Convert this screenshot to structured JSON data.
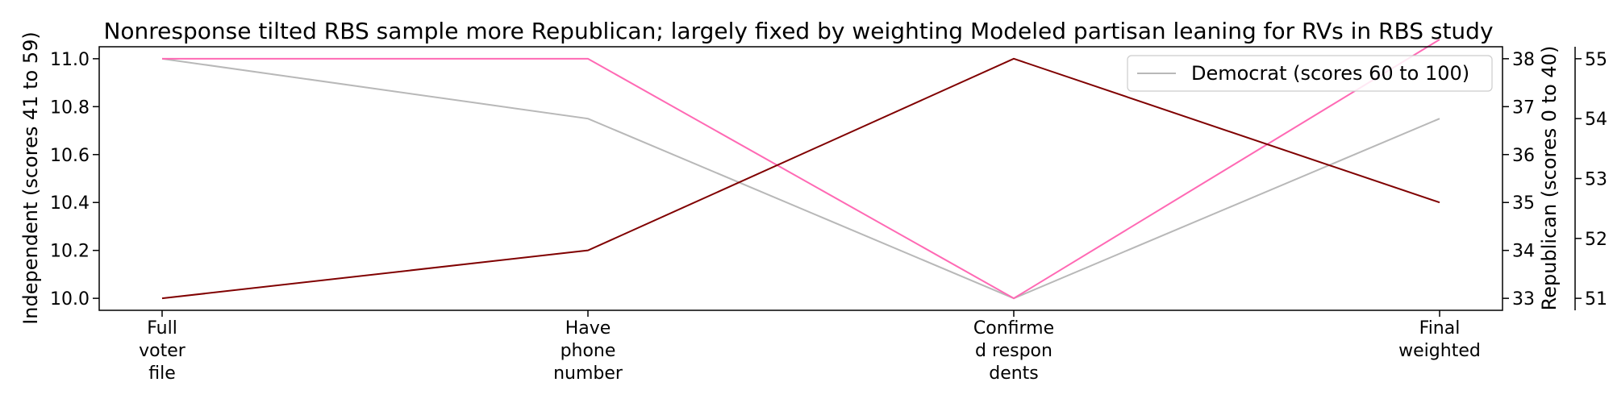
{
  "chart_data": {
    "type": "line",
    "title": "Nonresponse tilted RBS sample more Republican; largely fixed by weighting Modeled partisan leaning for RVs in RBS study",
    "categories": [
      [
        "Full",
        "voter",
        "file"
      ],
      [
        "Have",
        "phone",
        "number"
      ],
      [
        "Confirme",
        "d respon",
        "dents"
      ],
      [
        "Final",
        "weighted"
      ]
    ],
    "axes": {
      "left": {
        "label": "Independent (scores 41 to 59)",
        "range": [
          9.95,
          11.05
        ],
        "ticks": [
          "10.0",
          "10.2",
          "10.4",
          "10.6",
          "10.8",
          "11.0"
        ]
      },
      "right1": {
        "label": "Republican (scores 0 to 40)",
        "range": [
          32.75,
          38.25
        ],
        "ticks": [
          "33",
          "34",
          "35",
          "36",
          "37",
          "38"
        ]
      },
      "right2": {
        "label": "",
        "range": [
          50.8,
          55.2
        ],
        "ticks": [
          "51",
          "52",
          "53",
          "54",
          "55"
        ]
      }
    },
    "series": [
      {
        "name": "",
        "axis": "left",
        "color": "#800000",
        "values": [
          10.0,
          10.2,
          11.0,
          10.4
        ]
      },
      {
        "name": "",
        "axis": "right1",
        "color": "#ff69b4",
        "values": [
          38,
          38,
          33,
          38.4
        ]
      },
      {
        "name": "Democrat (scores 60 to 100)",
        "axis": "right2",
        "color": "#b8b8b8",
        "values": [
          55,
          54,
          51,
          54
        ]
      }
    ],
    "legend": {
      "placement": "top-right",
      "entries": [
        "Democrat (scores 60 to 100)"
      ]
    },
    "grid": false
  }
}
